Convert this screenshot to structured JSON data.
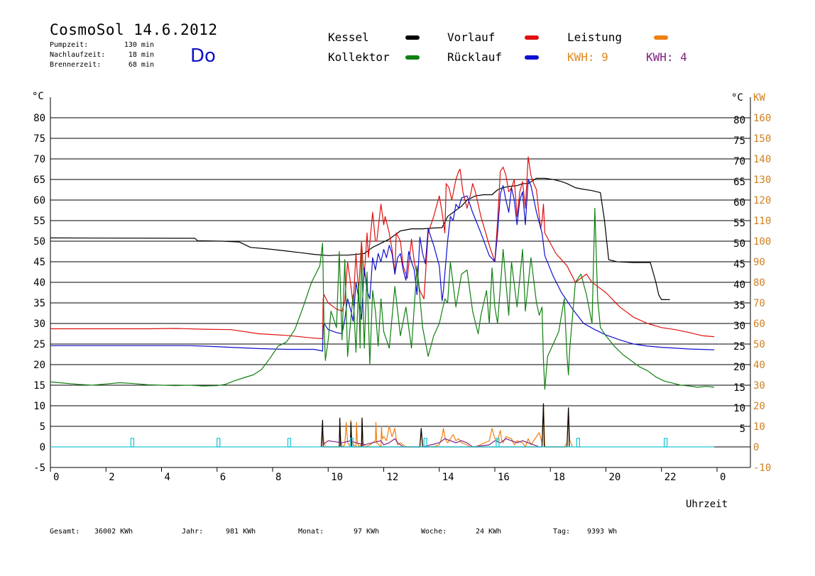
{
  "header": {
    "title": "CosmoSol 14.6.2012",
    "weekday": "Do",
    "stats": [
      {
        "label": "Pumpzeit:",
        "value": "130 min"
      },
      {
        "label": "Nachlaufzeit:",
        "value": "18 min"
      },
      {
        "label": "Brennerzeit:",
        "value": "68 min"
      }
    ]
  },
  "legend": {
    "kessel": {
      "label": "Kessel",
      "color": "#000000"
    },
    "kollektor": {
      "label": "Kollektor",
      "color": "#108010"
    },
    "vorlauf": {
      "label": "Vorlauf",
      "color": "#e01010"
    },
    "ruecklauf": {
      "label": "Rücklauf",
      "color": "#1010d0"
    },
    "leistung": {
      "label": "Leistung",
      "color": "#f08010"
    },
    "kwh1": {
      "label": "KWH: 9",
      "color": "#e08820"
    },
    "kwh2": {
      "label": "KWH: 4",
      "color": "#802080"
    }
  },
  "footer": [
    {
      "label": "Gesamt:",
      "value": "36002 KWh"
    },
    {
      "label": "Jahr:",
      "value": "981 KWh"
    },
    {
      "label": "Monat:",
      "value": "97 KWh"
    },
    {
      "label": "Woche:",
      "value": "24 KWh"
    },
    {
      "label": "Tag:",
      "value": "9393 Wh"
    }
  ],
  "chart_data": {
    "type": "line",
    "xlabel": "Uhrzeit",
    "ylabel_left": "°C",
    "ylabel_right_1": "°C",
    "ylabel_right_2": "KW",
    "xlim": [
      0,
      24
    ],
    "ylim": [
      -5,
      85
    ],
    "ylim_kw": [
      -10,
      170
    ],
    "x_ticks": [
      "0",
      "2",
      "4",
      "6",
      "8",
      "10",
      "12",
      "14",
      "16",
      "18",
      "20",
      "22",
      "0"
    ],
    "y_ticks": [
      -5,
      0,
      5,
      10,
      15,
      20,
      25,
      30,
      35,
      40,
      45,
      50,
      55,
      60,
      65,
      70,
      75,
      80
    ],
    "y_ticks_right": [
      5,
      10,
      15,
      20,
      25,
      30,
      35,
      40,
      45,
      50,
      55,
      60,
      65,
      70,
      75,
      80
    ],
    "kw_ticks": [
      -10,
      0,
      10,
      20,
      30,
      40,
      50,
      60,
      70,
      80,
      90,
      100,
      110,
      120,
      130,
      140,
      150,
      160
    ],
    "grid": true,
    "series": [
      {
        "name": "Kessel",
        "color": "#000000",
        "x": [
          0,
          5.2,
          5.3,
          6.2,
          6.8,
          7.2,
          8.0,
          8.5,
          9.0,
          9.5,
          10.0,
          10.3,
          10.7,
          11.0,
          11.3,
          11.6,
          11.9,
          12.2,
          12.6,
          13.0,
          13.4,
          13.8,
          14.1,
          14.3,
          14.5,
          14.8,
          15.0,
          15.3,
          15.6,
          15.9,
          16.1,
          16.3,
          16.5,
          16.8,
          17.0,
          17.2,
          17.5,
          17.8,
          18.1,
          18.4,
          18.6,
          18.9,
          19.2,
          19.5,
          19.8,
          19.95,
          20.1,
          20.4,
          21.0,
          21.6,
          21.8,
          21.9,
          22.0,
          22.3
        ],
        "y": [
          50.8,
          50.7,
          50.1,
          50.0,
          49.8,
          48.5,
          48.0,
          47.6,
          47.2,
          46.8,
          46.5,
          46.6,
          46.6,
          46.8,
          47.0,
          48.5,
          49.5,
          50.5,
          52.5,
          53.0,
          53.0,
          53.2,
          53.3,
          56.0,
          57.0,
          58.5,
          60.0,
          61.0,
          61.3,
          61.3,
          62.5,
          63.0,
          63.3,
          63.5,
          64.0,
          64.0,
          65.3,
          65.3,
          65.0,
          64.5,
          64.0,
          63.0,
          62.6,
          62.3,
          61.8,
          55.0,
          45.5,
          45.0,
          44.8,
          44.8,
          40.0,
          37.0,
          35.8,
          35.8
        ]
      },
      {
        "name": "Vorlauf",
        "color": "#e01010",
        "x": [
          0,
          2,
          3.5,
          4.5,
          5.5,
          6.5,
          7.5,
          8.5,
          9.4,
          9.8,
          9.82,
          9.85,
          10.0,
          10.3,
          10.5,
          10.6,
          10.7,
          10.8,
          10.9,
          11.0,
          11.05,
          11.1,
          11.2,
          11.25,
          11.3,
          11.4,
          11.45,
          11.6,
          11.7,
          11.75,
          11.9,
          12.0,
          12.05,
          12.2,
          12.3,
          12.4,
          12.45,
          12.6,
          12.7,
          12.85,
          13.0,
          13.1,
          13.2,
          13.3,
          13.45,
          13.6,
          13.8,
          14.0,
          14.1,
          14.2,
          14.25,
          14.35,
          14.45,
          14.6,
          14.7,
          14.75,
          14.85,
          15.0,
          15.15,
          15.2,
          15.3,
          15.5,
          15.8,
          16.0,
          16.1,
          16.2,
          16.3,
          16.4,
          16.5,
          16.6,
          16.7,
          16.8,
          16.9,
          17.0,
          17.1,
          17.2,
          17.3,
          17.4,
          17.5,
          17.6,
          17.65,
          17.7,
          17.75,
          17.8,
          18.2,
          18.6,
          18.9,
          19.3,
          19.5,
          19.7,
          20.0,
          20.5,
          21.0,
          21.5,
          22.0,
          22.5,
          23.0,
          23.5,
          23.9
        ],
        "y": [
          28.7,
          28.7,
          28.7,
          28.8,
          28.6,
          28.5,
          27.5,
          27.1,
          26.5,
          26.3,
          36.0,
          37.0,
          35.0,
          33.5,
          33.0,
          35.5,
          45.0,
          40.0,
          34.5,
          47.0,
          42.0,
          38.0,
          50.0,
          45.0,
          41.5,
          52.0,
          46.0,
          57.0,
          50.0,
          50.0,
          59.0,
          54.0,
          56.0,
          52.0,
          48.0,
          42.0,
          52.0,
          50.0,
          44.0,
          41.0,
          50.5,
          45.0,
          42.0,
          38.0,
          36.0,
          52.0,
          56.0,
          61.0,
          57.0,
          52.0,
          64.0,
          63.0,
          60.0,
          65.0,
          67.0,
          67.5,
          62.0,
          58.0,
          62.0,
          64.0,
          62.0,
          56.0,
          49.0,
          45.0,
          55.0,
          67.0,
          68.0,
          66.0,
          62.0,
          63.0,
          65.0,
          56.0,
          62.0,
          64.5,
          58.0,
          70.5,
          66.0,
          64.0,
          62.5,
          56.0,
          53.0,
          55.0,
          59.0,
          52.0,
          47.0,
          44.0,
          40.0,
          42.0,
          40.0,
          39.0,
          37.5,
          34.0,
          31.5,
          30.0,
          29.0,
          28.5,
          27.8,
          27.0,
          26.8
        ]
      },
      {
        "name": "Rücklauf",
        "color": "#1010d0",
        "x": [
          0,
          1,
          3,
          5,
          5.5,
          6.5,
          7.5,
          8.5,
          9.5,
          9.8,
          9.82,
          9.85,
          10.0,
          10.3,
          10.5,
          10.6,
          10.7,
          10.8,
          10.9,
          11.0,
          11.1,
          11.2,
          11.3,
          11.4,
          11.5,
          11.6,
          11.7,
          11.8,
          11.9,
          12.0,
          12.1,
          12.2,
          12.3,
          12.4,
          12.5,
          12.6,
          12.7,
          12.8,
          12.9,
          13.0,
          13.1,
          13.2,
          13.3,
          13.4,
          13.5,
          13.6,
          13.8,
          14.0,
          14.1,
          14.15,
          14.3,
          14.4,
          14.5,
          14.6,
          14.7,
          14.8,
          15.0,
          15.2,
          15.5,
          15.8,
          16.0,
          16.1,
          16.2,
          16.3,
          16.4,
          16.5,
          16.6,
          16.7,
          16.8,
          16.9,
          17.0,
          17.1,
          17.2,
          17.3,
          17.5,
          17.7,
          17.8,
          18.1,
          18.4,
          18.8,
          19.2,
          19.6,
          20.0,
          20.5,
          21.0,
          21.5,
          22.0,
          23.0,
          23.9
        ],
        "y": [
          24.6,
          24.6,
          24.6,
          24.6,
          24.5,
          24.2,
          23.9,
          23.7,
          23.7,
          23.3,
          29.0,
          30.0,
          28.5,
          27.8,
          27.5,
          31.0,
          36.0,
          33.5,
          30.5,
          40.0,
          36.0,
          31.0,
          43.5,
          38.0,
          36.0,
          46.0,
          43.0,
          47.0,
          45.0,
          48.0,
          46.0,
          49.0,
          47.0,
          42.0,
          46.0,
          47.0,
          43.0,
          40.5,
          47.5,
          45.0,
          43.0,
          37.0,
          51.0,
          47.0,
          44.5,
          53.0,
          49.0,
          44.0,
          35.5,
          38.0,
          50.0,
          56.0,
          55.0,
          59.0,
          58.0,
          60.5,
          61.0,
          57.0,
          52.0,
          46.5,
          45.0,
          52.0,
          61.5,
          63.5,
          60.0,
          57.0,
          63.0,
          60.0,
          54.0,
          60.0,
          62.0,
          54.0,
          65.0,
          63.5,
          57.0,
          52.0,
          46.5,
          41.5,
          37.5,
          33.5,
          30.0,
          28.5,
          27.2,
          26.0,
          25.0,
          24.5,
          24.2,
          23.8,
          23.6
        ]
      },
      {
        "name": "Kollektor",
        "color": "#108010",
        "x": [
          0,
          0.5,
          1,
          1.5,
          2,
          2.5,
          3,
          3.5,
          4,
          4.5,
          5,
          5.5,
          6,
          6.3,
          6.6,
          7.0,
          7.3,
          7.6,
          7.9,
          8.2,
          8.5,
          8.8,
          9.1,
          9.4,
          9.7,
          9.8,
          9.85,
          9.9,
          10.0,
          10.1,
          10.3,
          10.4,
          10.5,
          10.6,
          10.7,
          10.8,
          10.9,
          11.0,
          11.1,
          11.15,
          11.2,
          11.3,
          11.4,
          11.5,
          11.6,
          11.7,
          11.8,
          11.9,
          12.0,
          12.2,
          12.4,
          12.6,
          12.8,
          13.0,
          13.2,
          13.4,
          13.6,
          13.8,
          14.0,
          14.2,
          14.3,
          14.4,
          14.6,
          14.8,
          15.0,
          15.2,
          15.4,
          15.5,
          15.7,
          15.8,
          15.9,
          16.0,
          16.1,
          16.3,
          16.5,
          16.6,
          16.8,
          17.0,
          17.1,
          17.3,
          17.5,
          17.6,
          17.7,
          17.75,
          17.8,
          17.9,
          18.1,
          18.3,
          18.5,
          18.6,
          18.65,
          18.7,
          18.9,
          19.1,
          19.3,
          19.5,
          19.6,
          19.7,
          19.8,
          20.0,
          20.3,
          20.6,
          20.9,
          21.2,
          21.5,
          21.8,
          22.1,
          22.4,
          22.7,
          23.0,
          23.3,
          23.6,
          23.9
        ],
        "y": [
          15.8,
          15.5,
          15.2,
          15.0,
          15.3,
          15.6,
          15.4,
          15.1,
          15.0,
          14.9,
          15.0,
          14.8,
          14.9,
          15.2,
          16.0,
          16.9,
          17.5,
          18.8,
          21.5,
          24.5,
          25.5,
          28.5,
          34.0,
          40.0,
          44.0,
          49.5,
          30.0,
          21.0,
          26.0,
          33.0,
          29.0,
          47.5,
          26.0,
          45.5,
          22.0,
          30.0,
          37.0,
          23.0,
          40.0,
          24.0,
          48.0,
          24.0,
          42.5,
          20.0,
          38.0,
          33.0,
          24.5,
          36.0,
          28.0,
          24.0,
          39.0,
          27.0,
          34.0,
          24.0,
          44.0,
          29.0,
          22.0,
          27.0,
          30.0,
          36.0,
          35.0,
          45.0,
          34.0,
          42.0,
          43.0,
          33.0,
          27.5,
          32.0,
          38.0,
          30.0,
          43.5,
          34.0,
          30.0,
          48.0,
          32.0,
          45.0,
          34.0,
          48.0,
          33.0,
          46.0,
          35.0,
          32.0,
          34.0,
          21.0,
          14.0,
          22.0,
          25.0,
          28.0,
          36.0,
          22.0,
          17.5,
          24.0,
          40.0,
          42.0,
          37.0,
          30.0,
          58.0,
          36.0,
          29.0,
          27.0,
          24.5,
          22.5,
          21.0,
          19.5,
          18.5,
          17.0,
          16.0,
          15.5,
          15.0,
          14.8,
          14.5,
          14.7,
          14.5
        ]
      },
      {
        "name": "Leistung",
        "color": "#f08010",
        "axis": "kw",
        "x": [
          9.75,
          9.8,
          9.85,
          9.9,
          10.4,
          10.42,
          10.45,
          10.5,
          10.6,
          10.65,
          10.7,
          10.8,
          10.82,
          10.85,
          11.0,
          11.02,
          11.05,
          11.1,
          11.2,
          11.22,
          11.25,
          11.35,
          11.5,
          11.7,
          11.72,
          11.75,
          11.9,
          11.92,
          11.95,
          12.0,
          12.1,
          12.2,
          12.3,
          12.4,
          12.45,
          12.5,
          12.6,
          12.7,
          12.8,
          13.0,
          13.3,
          13.35,
          13.4,
          13.8,
          14.0,
          14.1,
          14.15,
          14.2,
          14.25,
          14.3,
          14.5,
          14.6,
          14.7,
          14.8,
          15.0,
          15.1,
          15.3,
          15.8,
          15.9,
          16.0,
          16.1,
          16.2,
          16.25,
          16.3,
          16.4,
          16.6,
          16.7,
          16.8,
          17.0,
          17.1,
          17.2,
          17.3,
          17.5,
          17.6,
          17.7,
          17.75,
          17.8,
          18.5,
          18.6,
          18.65,
          18.7,
          18.8
        ],
        "y": [
          0,
          8,
          2,
          0,
          0,
          12,
          3,
          0,
          1,
          12,
          2,
          0,
          13,
          2,
          0,
          12,
          3,
          0,
          1,
          14,
          2,
          0,
          1,
          3,
          12,
          2,
          0,
          10,
          4,
          5,
          3,
          10,
          5,
          9,
          4,
          1,
          2,
          1,
          0,
          0,
          0,
          8,
          0,
          0,
          1,
          5,
          9,
          5,
          3,
          2,
          6,
          3,
          4,
          2,
          1,
          0,
          0,
          3,
          9,
          4,
          3,
          8,
          3,
          2,
          5,
          4,
          1,
          3,
          2,
          0,
          4,
          1,
          5,
          7,
          2,
          20,
          0,
          0,
          2,
          19,
          3,
          0
        ]
      },
      {
        "name": "Kessel-Leistung",
        "color": "#000000",
        "axis": "kw",
        "x": [
          9.75,
          9.8,
          9.82,
          10.4,
          10.42,
          10.45,
          10.8,
          10.82,
          10.85,
          11.2,
          11.22,
          11.25,
          13.3,
          13.35,
          13.4,
          17.7,
          17.75,
          17.78,
          18.6,
          18.65,
          18.68
        ],
        "y": [
          0,
          13,
          0,
          0,
          14,
          0,
          0,
          12,
          0,
          0,
          14,
          0,
          0,
          9,
          0,
          0,
          21,
          0,
          0,
          19,
          0
        ]
      },
      {
        "name": "KWH2",
        "color": "#802080",
        "axis": "kw",
        "x": [
          9.8,
          10.0,
          10.5,
          10.8,
          11.0,
          11.3,
          11.6,
          11.9,
          12.0,
          12.2,
          12.4,
          12.5,
          12.7,
          13.4,
          14.0,
          14.2,
          14.4,
          14.6,
          14.8,
          15.0,
          15.2,
          15.8,
          16.0,
          16.2,
          16.4,
          16.6,
          16.8,
          17.0,
          17.2,
          17.4,
          17.6
        ],
        "y": [
          1,
          3,
          2,
          3,
          2,
          1,
          2,
          3,
          1,
          2,
          4,
          2,
          0,
          0,
          2,
          4,
          3,
          2,
          3,
          2,
          0,
          1,
          3,
          2,
          4,
          3,
          2,
          3,
          2,
          1,
          0
        ]
      },
      {
        "name": "Pumpe",
        "color": "#20c8d8",
        "axis": "kw",
        "x": [
          0,
          23.9
        ],
        "y": [
          0,
          0
        ],
        "markers_x": [
          2.95,
          6.05,
          8.6,
          10.85,
          13.5,
          16.1,
          19.0,
          22.15
        ]
      }
    ]
  }
}
